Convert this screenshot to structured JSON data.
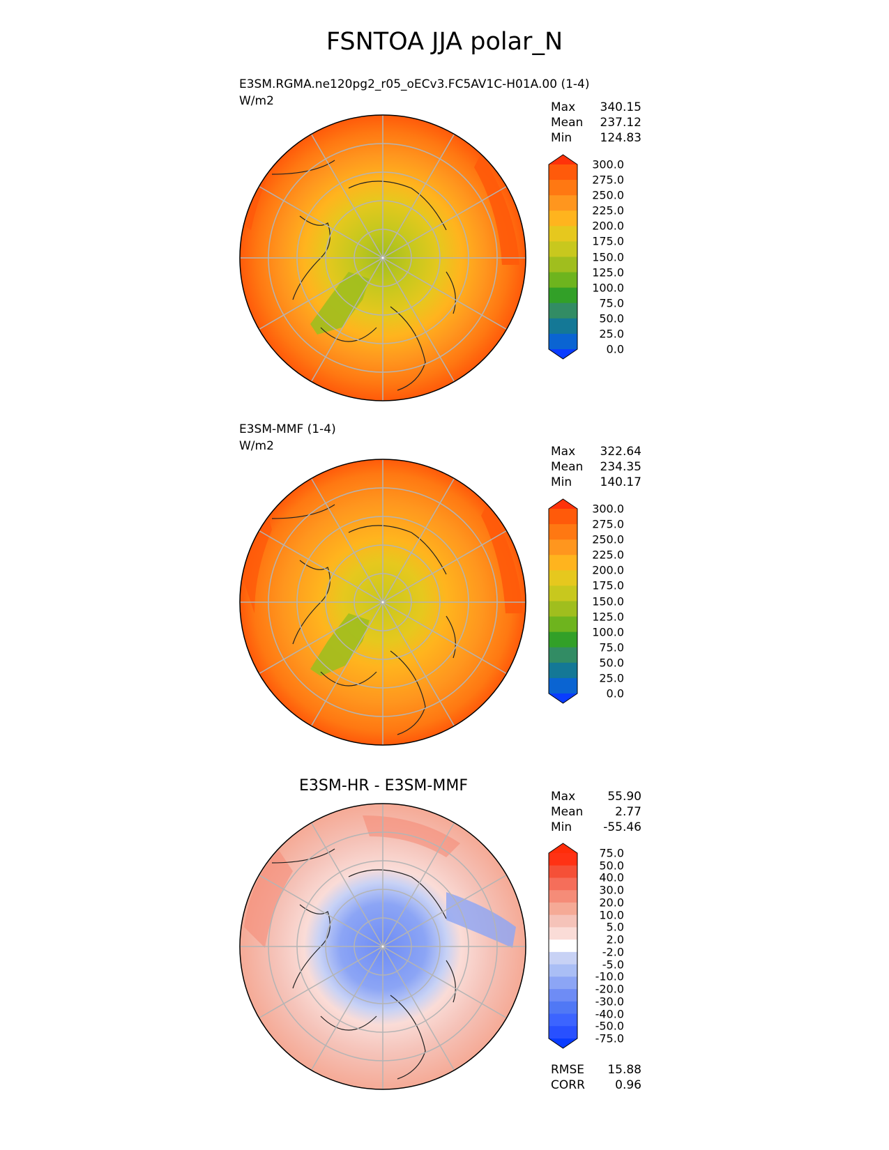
{
  "figure": {
    "title": "FSNTOA JJA polar_N"
  },
  "chart_data": [
    {
      "type": "heatmap",
      "projection": "north-polar-stereographic",
      "title": "E3SM.RGMA.ne120pg2_r05_oECv3.FC5AV1C-H01A.00 (1-4)",
      "units": "W/m2",
      "stats": {
        "max_label": "Max",
        "max": "340.15",
        "mean_label": "Mean",
        "mean": "237.12",
        "min_label": "Min",
        "min": "124.83"
      },
      "colorbar": {
        "levels": [
          "0.0",
          "25.0",
          "50.0",
          "75.0",
          "100.0",
          "125.0",
          "150.0",
          "175.0",
          "200.0",
          "225.0",
          "250.0",
          "275.0",
          "300.0"
        ],
        "colors": [
          "#0a3cff",
          "#0a64d2",
          "#147896",
          "#328c64",
          "#32a028",
          "#6eb41e",
          "#a0be1e",
          "#c8c81e",
          "#e6c81e",
          "#ffb41e",
          "#ff961e",
          "#ff7812",
          "#ff5a0a",
          "#ff320a"
        ]
      }
    },
    {
      "type": "heatmap",
      "projection": "north-polar-stereographic",
      "title": "E3SM-MMF (1-4)",
      "units": "W/m2",
      "stats": {
        "max_label": "Max",
        "max": "322.64",
        "mean_label": "Mean",
        "mean": "234.35",
        "min_label": "Min",
        "min": "140.17"
      },
      "colorbar": {
        "levels": [
          "0.0",
          "25.0",
          "50.0",
          "75.0",
          "100.0",
          "125.0",
          "150.0",
          "175.0",
          "200.0",
          "225.0",
          "250.0",
          "275.0",
          "300.0"
        ],
        "colors": [
          "#0a3cff",
          "#0a64d2",
          "#147896",
          "#328c64",
          "#32a028",
          "#6eb41e",
          "#a0be1e",
          "#c8c81e",
          "#e6c81e",
          "#ffb41e",
          "#ff961e",
          "#ff7812",
          "#ff5a0a",
          "#ff320a"
        ]
      }
    },
    {
      "type": "heatmap",
      "projection": "north-polar-stereographic",
      "title": "E3SM-HR - E3SM-MMF",
      "stats": {
        "max_label": "Max",
        "max": "55.90",
        "mean_label": "Mean",
        "mean": "2.77",
        "min_label": "Min",
        "min": "-55.46"
      },
      "metrics": {
        "rmse_label": "RMSE",
        "rmse": "15.88",
        "corr_label": "CORR",
        "corr": "0.96"
      },
      "colorbar": {
        "levels": [
          "-75.0",
          "-50.0",
          "-40.0",
          "-30.0",
          "-20.0",
          "-10.0",
          "-5.0",
          "-2.0",
          "2.0",
          "5.0",
          "10.0",
          "20.0",
          "30.0",
          "40.0",
          "50.0",
          "75.0"
        ],
        "colors": [
          "#0a3cff",
          "#2850ff",
          "#3c64ff",
          "#5078f5",
          "#6e8cf5",
          "#8ca5f5",
          "#aabef5",
          "#c8d2f5",
          "#ffffff",
          "#fadcd7",
          "#f5c3b9",
          "#f5aa96",
          "#f58c78",
          "#f56e5a",
          "#f55037",
          "#ff3214",
          "#ff2d0a"
        ]
      }
    }
  ]
}
